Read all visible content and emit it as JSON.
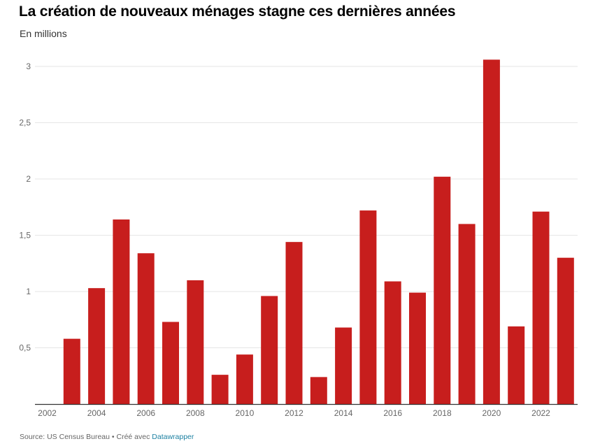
{
  "header": {
    "title": "La création de nouveaux ménages stagne ces dernières années",
    "subtitle": "En millions"
  },
  "footer": {
    "source_prefix": "Source: US Census Bureau • Créé avec ",
    "link_label": "Datawrapper"
  },
  "colors": {
    "bar": "#c71e1d",
    "grid": "#e6e6e6",
    "axis": "#333333",
    "tick_text": "#666666"
  },
  "chart_data": {
    "type": "bar",
    "title": "La création de nouveaux ménages stagne ces dernières années",
    "subtitle": "En millions",
    "xlabel": "",
    "ylabel": "",
    "x_tick_labels": [
      "2002",
      "2004",
      "2006",
      "2008",
      "2010",
      "2012",
      "2014",
      "2016",
      "2018",
      "2020",
      "2022"
    ],
    "y_tick_labels": [
      "0,5",
      "1",
      "1,5",
      "2",
      "2,5",
      "3"
    ],
    "y_ticks": [
      0.5,
      1,
      1.5,
      2,
      2.5,
      3
    ],
    "ylim": [
      0,
      3.1
    ],
    "grid": true,
    "categories": [
      2002,
      2003,
      2004,
      2005,
      2006,
      2007,
      2008,
      2009,
      2010,
      2011,
      2012,
      2013,
      2014,
      2015,
      2016,
      2017,
      2018,
      2019,
      2020,
      2021,
      2022,
      2023
    ],
    "values": [
      null,
      0.58,
      1.03,
      1.64,
      1.34,
      0.73,
      1.1,
      0.26,
      0.44,
      0.96,
      1.44,
      0.24,
      0.68,
      1.72,
      1.09,
      0.99,
      2.02,
      1.6,
      3.06,
      0.69,
      1.71,
      1.3
    ]
  }
}
